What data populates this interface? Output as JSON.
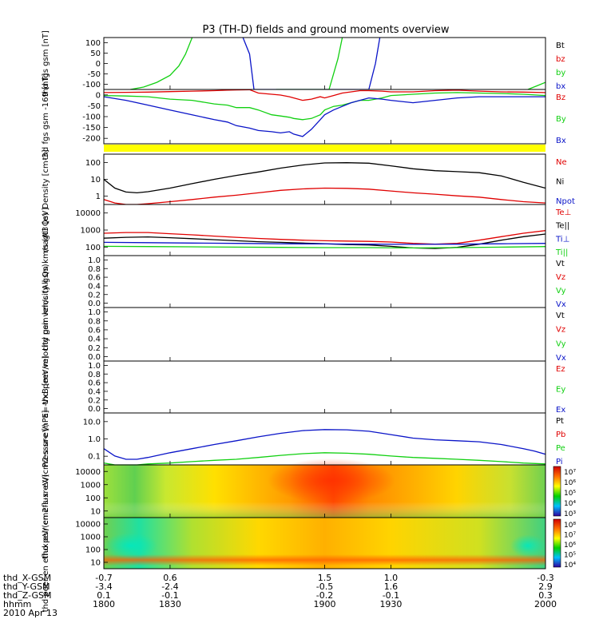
{
  "title": "P3 (TH-D) fields and ground moments overview",
  "colors": {
    "black": "#000000",
    "red": "#e00000",
    "green": "#11d011",
    "blue": "#0a14c8",
    "yellow": "#ffff00"
  },
  "chart_data": [
    {
      "type": "line",
      "ylabel": "thd fgs gsm [nT]",
      "yticks": [
        "100",
        "50",
        "0",
        "-50",
        "-100"
      ],
      "ylim": [
        -110,
        110
      ],
      "legend": [
        {
          "label": "Bt",
          "color": "#000000"
        },
        {
          "label": "bz",
          "color": "#e00000"
        },
        {
          "label": "by",
          "color": "#11d011"
        },
        {
          "label": "bx",
          "color": "#0a14c8"
        }
      ],
      "series": [
        {
          "color": "#11d011",
          "x": [
            1812,
            1818,
            1824,
            1830,
            1834,
            1837,
            1840
          ],
          "y": [
            -110,
            -100,
            -80,
            -50,
            -10,
            40,
            110
          ]
        },
        {
          "color": "#0a14c8",
          "x": [
            1863,
            1866,
            1868,
            1871,
            1874,
            1877,
            1880,
            1883,
            1886,
            1888,
            1890,
            1893,
            1896,
            1899,
            1902,
            1905,
            1908,
            1911,
            1914,
            1917,
            1920,
            1923,
            1925
          ],
          "y": [
            110,
            40,
            -110,
            -110,
            -110,
            -110,
            -110,
            -110,
            -110,
            -110,
            -110,
            -110,
            -110,
            -110,
            -110,
            -110,
            -110,
            -110,
            -110,
            -110,
            -110,
            0,
            110
          ]
        },
        {
          "color": "#11d011",
          "x": [
            1878,
            1882,
            1886,
            1890,
            1894,
            1898,
            1902,
            1906,
            1908
          ],
          "y": [
            -110,
            -110,
            -110,
            -110,
            -110,
            -110,
            -110,
            20,
            110
          ]
        },
        {
          "color": "#11d011",
          "x": [
            1992,
            1996,
            2000
          ],
          "y": [
            -110,
            -95,
            -80
          ]
        }
      ]
    },
    {
      "type": "line",
      "ylabel": "thd fgs gsm -169 [nT]",
      "yticks": [
        "0",
        "-50",
        "-100",
        "-150",
        "-200"
      ],
      "ylim": [
        -200,
        25
      ],
      "legend": [
        {
          "label": "Bz",
          "color": "#e00000"
        },
        {
          "label": "By",
          "color": "#11d011"
        },
        {
          "label": "Bx",
          "color": "#0a14c8"
        }
      ],
      "series": [
        {
          "name": "Bz",
          "color": "#e00000",
          "x": [
            1800,
            1810,
            1820,
            1830,
            1840,
            1850,
            1856,
            1860,
            1866,
            1870,
            1876,
            1880,
            1884,
            1886,
            1890,
            1894,
            1898,
            1900,
            1904,
            1908,
            1912,
            1916,
            1920,
            1926,
            1930,
            1940,
            1950,
            1960,
            1970,
            1980,
            1990,
            2000
          ],
          "y": [
            12,
            13,
            14,
            16,
            18,
            20,
            22,
            23,
            24,
            10,
            5,
            2,
            -5,
            -10,
            -20,
            -15,
            -5,
            -10,
            0,
            10,
            15,
            20,
            20,
            18,
            15,
            15,
            20,
            22,
            18,
            15,
            14,
            12
          ]
        },
        {
          "name": "By",
          "color": "#11d011",
          "x": [
            1800,
            1810,
            1820,
            1830,
            1840,
            1850,
            1856,
            1860,
            1866,
            1870,
            1876,
            1880,
            1884,
            1886,
            1890,
            1894,
            1898,
            1900,
            1904,
            1908,
            1912,
            1916,
            1920,
            1926,
            1930,
            1940,
            1950,
            1960,
            1970,
            1980,
            1990,
            2000
          ],
          "y": [
            0,
            -2,
            -5,
            -15,
            -20,
            -35,
            -40,
            -50,
            -50,
            -60,
            -80,
            -85,
            -90,
            -95,
            -100,
            -95,
            -80,
            -60,
            -45,
            -40,
            -30,
            -20,
            -20,
            -10,
            0,
            5,
            10,
            12,
            10,
            8,
            5,
            0
          ]
        },
        {
          "name": "Bx",
          "color": "#0a14c8",
          "x": [
            1800,
            1810,
            1820,
            1830,
            1840,
            1850,
            1856,
            1860,
            1866,
            1870,
            1876,
            1880,
            1884,
            1886,
            1890,
            1894,
            1898,
            1900,
            1904,
            1908,
            1912,
            1916,
            1920,
            1926,
            1930,
            1940,
            1950,
            1960,
            1970,
            1980,
            1990,
            2000
          ],
          "y": [
            -5,
            -20,
            -40,
            -60,
            -80,
            -100,
            -110,
            -125,
            -135,
            -145,
            -150,
            -155,
            -150,
            -160,
            -170,
            -140,
            -100,
            -80,
            -60,
            -45,
            -30,
            -20,
            -10,
            -15,
            -20,
            -30,
            -20,
            -10,
            -5,
            -5,
            -5,
            -5
          ]
        }
      ]
    },
    {
      "type": "line",
      "ylabel": "Density [cm-3]",
      "yscale": "log",
      "yticks": [
        "100",
        "10",
        "1"
      ],
      "ylim": [
        0.5,
        200
      ],
      "legend": [
        {
          "label": "Ne",
          "color": "#e00000"
        },
        {
          "label": "Ni",
          "color": "#000000"
        },
        {
          "label": "Npot",
          "color": "#0a14c8"
        }
      ],
      "series": [
        {
          "name": "Ni",
          "color": "#000000",
          "x": [
            1800,
            1805,
            1810,
            1815,
            1820,
            1830,
            1840,
            1850,
            1860,
            1870,
            1880,
            1890,
            1900,
            1910,
            1920,
            1930,
            1940,
            1950,
            1960,
            1970,
            1980,
            1990,
            2000
          ],
          "y": [
            10,
            3.5,
            2.2,
            2.0,
            2.3,
            3.5,
            6,
            10,
            16,
            24,
            38,
            55,
            70,
            72,
            68,
            50,
            35,
            28,
            25,
            22,
            15,
            7,
            3.5
          ]
        },
        {
          "name": "Ne",
          "color": "#e00000",
          "x": [
            1800,
            1805,
            1810,
            1815,
            1820,
            1830,
            1840,
            1850,
            1860,
            1870,
            1880,
            1890,
            1900,
            1910,
            1920,
            1930,
            1940,
            1950,
            1960,
            1970,
            1980,
            1990,
            2000
          ],
          "y": [
            0.9,
            0.6,
            0.5,
            0.5,
            0.55,
            0.7,
            0.9,
            1.2,
            1.5,
            2.0,
            2.7,
            3.2,
            3.5,
            3.4,
            3.1,
            2.5,
            2.0,
            1.7,
            1.4,
            1.2,
            0.9,
            0.7,
            0.6
          ]
        }
      ]
    },
    {
      "type": "line",
      "ylabel": "magt3 [eV]",
      "yscale": "log",
      "yticks": [
        "10000",
        "1000",
        "100"
      ],
      "ylim": [
        100,
        10000
      ],
      "legend": [
        {
          "label": "Te⊥",
          "color": "#e00000"
        },
        {
          "label": "Te||",
          "color": "#000000"
        },
        {
          "label": "Ti⊥",
          "color": "#0a14c8"
        },
        {
          "label": "Ti||",
          "color": "#11d011"
        }
      ],
      "series": [
        {
          "name": "Te⊥",
          "color": "#e00000",
          "x": [
            1800,
            1810,
            1820,
            1830,
            1840,
            1850,
            1860,
            1870,
            1880,
            1890,
            1900,
            1910,
            1920,
            1930,
            1940,
            1950,
            1960,
            1970,
            1980,
            1990,
            2000
          ],
          "y": [
            750,
            800,
            800,
            720,
            650,
            580,
            520,
            470,
            430,
            400,
            380,
            370,
            360,
            340,
            300,
            280,
            300,
            400,
            550,
            750,
            950
          ]
        },
        {
          "name": "Te||",
          "color": "#000000",
          "x": [
            1800,
            1810,
            1820,
            1830,
            1840,
            1850,
            1860,
            1870,
            1880,
            1890,
            1900,
            1910,
            1920,
            1930,
            1940,
            1950,
            1960,
            1970,
            1980,
            1990,
            2000
          ],
          "y": [
            480,
            520,
            540,
            500,
            460,
            420,
            380,
            350,
            330,
            310,
            290,
            270,
            260,
            230,
            200,
            190,
            210,
            280,
            400,
            550,
            700
          ]
        },
        {
          "name": "Ti⊥",
          "color": "#0a14c8",
          "x": [
            1800,
            1820,
            1840,
            1860,
            1880,
            1900,
            1920,
            1940,
            1960,
            1980,
            2000
          ],
          "y": [
            330,
            320,
            310,
            300,
            290,
            285,
            280,
            275,
            280,
            290,
            300
          ]
        },
        {
          "name": "Ti||",
          "color": "#11d011",
          "x": [
            1800,
            1820,
            1840,
            1860,
            1880,
            1900,
            1920,
            1940,
            1960,
            1980,
            2000
          ],
          "y": [
            230,
            225,
            220,
            215,
            210,
            205,
            205,
            200,
            205,
            215,
            225
          ]
        }
      ]
    },
    {
      "type": "line",
      "ylabel": "thd peir velocity gsm km/s (All Qs)",
      "yticks": [
        "1.0",
        "0.8",
        "0.6",
        "0.4",
        "0.2",
        "0.0"
      ],
      "ylim": [
        0,
        1
      ],
      "legend": [
        {
          "label": "Vt",
          "color": "#000000"
        },
        {
          "label": "Vz",
          "color": "#e00000"
        },
        {
          "label": "Vy",
          "color": "#11d011"
        },
        {
          "label": "Vx",
          "color": "#0a14c8"
        }
      ],
      "series": []
    },
    {
      "type": "line",
      "ylabel": "thd peer velocity gsm km/s (All Qs)",
      "yticks": [
        "1.0",
        "0.8",
        "0.6",
        "0.4",
        "0.2",
        "0.0"
      ],
      "ylim": [
        0,
        1
      ],
      "legend": [
        {
          "label": "Vt",
          "color": "#000000"
        },
        {
          "label": "Vz",
          "color": "#e00000"
        },
        {
          "label": "Vy",
          "color": "#11d011"
        },
        {
          "label": "Vx",
          "color": "#0a14c8"
        }
      ],
      "series": []
    },
    {
      "type": "line",
      "ylabel": "E=-VxB [mV/m]",
      "yticks": [
        "1.0",
        "0.8",
        "0.6",
        "0.4",
        "0.2",
        "0.0"
      ],
      "ylim": [
        0,
        1
      ],
      "legend": [
        {
          "label": "Ez",
          "color": "#e00000"
        },
        {
          "label": "Ey",
          "color": "#11d011"
        },
        {
          "label": "Ex",
          "color": "#0a14c8"
        }
      ],
      "series": []
    },
    {
      "type": "line",
      "ylabel": "Pressure [nPa]",
      "yscale": "log",
      "yticks": [
        "10.0",
        "1.0",
        "0.1"
      ],
      "ylim": [
        0.04,
        25
      ],
      "legend": [
        {
          "label": "Pt",
          "color": "#000000"
        },
        {
          "label": "Pb",
          "color": "#e00000"
        },
        {
          "label": "Pe",
          "color": "#11d011"
        },
        {
          "label": "Pi",
          "color": "#0a14c8"
        }
      ],
      "series": [
        {
          "name": "Pi",
          "color": "#0a14c8",
          "x": [
            1800,
            1805,
            1810,
            1815,
            1820,
            1830,
            1840,
            1850,
            1860,
            1870,
            1880,
            1890,
            1900,
            1910,
            1920,
            1930,
            1940,
            1950,
            1960,
            1970,
            1980,
            1990,
            1995,
            2000
          ],
          "y": [
            0.3,
            0.12,
            0.08,
            0.08,
            0.1,
            0.18,
            0.3,
            0.5,
            0.8,
            1.3,
            2.0,
            2.8,
            3.2,
            3.1,
            2.6,
            1.7,
            1.1,
            0.9,
            0.8,
            0.7,
            0.5,
            0.3,
            0.22,
            0.15
          ]
        },
        {
          "name": "Pe",
          "color": "#11d011",
          "x": [
            1800,
            1805,
            1810,
            1815,
            1820,
            1830,
            1840,
            1850,
            1860,
            1870,
            1880,
            1890,
            1900,
            1910,
            1920,
            1930,
            1940,
            1950,
            1960,
            1970,
            1980,
            1990,
            2000
          ],
          "y": [
            0.05,
            0.04,
            0.04,
            0.04,
            0.045,
            0.05,
            0.06,
            0.07,
            0.08,
            0.1,
            0.13,
            0.16,
            0.18,
            0.17,
            0.15,
            0.12,
            0.1,
            0.09,
            0.08,
            0.07,
            0.06,
            0.05,
            0.045
          ]
        }
      ]
    },
    {
      "type": "heatmap",
      "ylabel": "thd peir en eflux eV/(cm2-s-sr-eV)",
      "yticks": [
        "10000",
        "1000",
        "100",
        "10"
      ],
      "colorbar_labels": [
        "10⁷",
        "10⁶",
        "10⁵",
        "10⁴",
        "10³"
      ]
    },
    {
      "type": "heatmap",
      "ylabel": "thd peer en eflux eV/(cm2-s-sr-eV)",
      "yticks": [
        "10000",
        "1000",
        "100",
        "10"
      ],
      "colorbar_labels": [
        "10⁸",
        "10⁷",
        "10⁶",
        "10⁵",
        "10⁴"
      ]
    }
  ],
  "xaxis": {
    "labels": [
      "thd_X-GSM",
      "thd_Y-GSM",
      "thd_Z-GSM",
      "hhmm",
      "2010 Apr 13"
    ],
    "x_gsm": [
      "-0.7",
      "0.6",
      "1.5",
      "1.0",
      "-0.3"
    ],
    "y_gsm": [
      "-3.4",
      "-2.4",
      "-0.5",
      "1.6",
      "2.9"
    ],
    "z_gsm": [
      "0.1",
      "-0.1",
      "-0.2",
      "-0.1",
      "0.3"
    ],
    "hhmm": [
      "1800",
      "1830",
      "1900",
      "1930",
      "2000"
    ],
    "times": [
      1800,
      1830,
      1900,
      1930,
      2000
    ],
    "range": [
      1800,
      2000
    ]
  }
}
